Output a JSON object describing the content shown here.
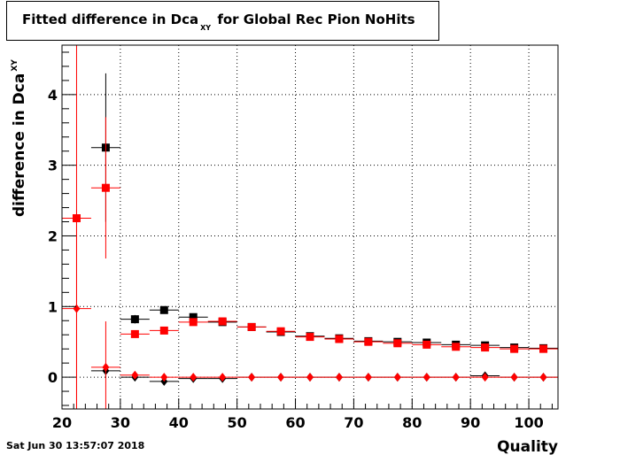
{
  "title": {
    "main": "Fitted difference in Dca",
    "sub": "XY",
    "rest": "for Global Rec Pion NoHits"
  },
  "footer": {
    "date": "Sat Jun 30 13:57:07 2018"
  },
  "chart_data": {
    "type": "scatter",
    "xlabel": "Quality",
    "ylabel": {
      "main": "difference in Dca",
      "sub": "XY"
    },
    "xlim": [
      20,
      105
    ],
    "ylim": [
      -0.45,
      4.7
    ],
    "x_ticks": [
      20,
      30,
      40,
      50,
      60,
      70,
      80,
      90,
      100
    ],
    "y_ticks": [
      0,
      1,
      2,
      3,
      4
    ],
    "grid": true,
    "colors": {
      "black_series": "#000000",
      "red_series": "#ff0000"
    },
    "series": [
      {
        "marker": "square",
        "color": "#000000",
        "points": [
          {
            "x": 27.5,
            "y": 3.25,
            "yerr": 1.05,
            "xerr": 2.5
          },
          {
            "x": 32.5,
            "y": 0.82,
            "yerr": 0.06,
            "xerr": 2.5
          },
          {
            "x": 37.5,
            "y": 0.95,
            "yerr": 0.05,
            "xerr": 2.5
          },
          {
            "x": 42.5,
            "y": 0.85,
            "yerr": 0.03,
            "xerr": 2.5
          },
          {
            "x": 47.5,
            "y": 0.78,
            "yerr": 0.03,
            "xerr": 2.5
          },
          {
            "x": 52.5,
            "y": 0.71,
            "yerr": 0.02,
            "xerr": 2.5
          },
          {
            "x": 57.5,
            "y": 0.64,
            "yerr": 0.02,
            "xerr": 2.5
          },
          {
            "x": 62.5,
            "y": 0.58,
            "yerr": 0.02,
            "xerr": 2.5
          },
          {
            "x": 67.5,
            "y": 0.55,
            "yerr": 0.02,
            "xerr": 2.5
          },
          {
            "x": 72.5,
            "y": 0.51,
            "yerr": 0.02,
            "xerr": 2.5
          },
          {
            "x": 77.5,
            "y": 0.5,
            "yerr": 0.02,
            "xerr": 2.5
          },
          {
            "x": 82.5,
            "y": 0.49,
            "yerr": 0.02,
            "xerr": 2.5
          },
          {
            "x": 87.5,
            "y": 0.46,
            "yerr": 0.02,
            "xerr": 2.5
          },
          {
            "x": 92.5,
            "y": 0.45,
            "yerr": 0.02,
            "xerr": 2.5
          },
          {
            "x": 97.5,
            "y": 0.42,
            "yerr": 0.02,
            "xerr": 2.5
          },
          {
            "x": 102.5,
            "y": 0.41,
            "yerr": 0.02,
            "xerr": 2.5
          }
        ]
      },
      {
        "marker": "square",
        "color": "#ff0000",
        "points": [
          {
            "x": 22.5,
            "y": 2.25,
            "yerr": 2.9,
            "xerr": 2.5
          },
          {
            "x": 27.5,
            "y": 2.68,
            "yerr": 1.0,
            "xerr": 2.5
          },
          {
            "x": 32.5,
            "y": 0.61,
            "yerr": 0.04,
            "xerr": 2.5
          },
          {
            "x": 37.5,
            "y": 0.66,
            "yerr": 0.03,
            "xerr": 2.5
          },
          {
            "x": 42.5,
            "y": 0.78,
            "yerr": 0.03,
            "xerr": 2.5
          },
          {
            "x": 47.5,
            "y": 0.79,
            "yerr": 0.03,
            "xerr": 2.5
          },
          {
            "x": 52.5,
            "y": 0.71,
            "yerr": 0.02,
            "xerr": 2.5
          },
          {
            "x": 57.5,
            "y": 0.65,
            "yerr": 0.02,
            "xerr": 2.5
          },
          {
            "x": 62.5,
            "y": 0.57,
            "yerr": 0.02,
            "xerr": 2.5
          },
          {
            "x": 67.5,
            "y": 0.54,
            "yerr": 0.02,
            "xerr": 2.5
          },
          {
            "x": 72.5,
            "y": 0.5,
            "yerr": 0.02,
            "xerr": 2.5
          },
          {
            "x": 77.5,
            "y": 0.48,
            "yerr": 0.02,
            "xerr": 2.5
          },
          {
            "x": 82.5,
            "y": 0.46,
            "yerr": 0.02,
            "xerr": 2.5
          },
          {
            "x": 87.5,
            "y": 0.43,
            "yerr": 0.02,
            "xerr": 2.5
          },
          {
            "x": 92.5,
            "y": 0.42,
            "yerr": 0.02,
            "xerr": 2.5
          },
          {
            "x": 97.5,
            "y": 0.4,
            "yerr": 0.02,
            "xerr": 2.5
          },
          {
            "x": 102.5,
            "y": 0.4,
            "yerr": 0.02,
            "xerr": 2.5
          }
        ]
      },
      {
        "marker": "diamond",
        "color": "#000000",
        "points": [
          {
            "x": 27.5,
            "y": 0.09,
            "yerr": 0.1,
            "xerr": 2.5
          },
          {
            "x": 32.5,
            "y": 0.0,
            "yerr": 0.02,
            "xerr": 2.5
          },
          {
            "x": 37.5,
            "y": -0.06,
            "yerr": 0.02,
            "xerr": 2.5
          },
          {
            "x": 42.5,
            "y": -0.02,
            "yerr": 0.02,
            "xerr": 2.5
          },
          {
            "x": 47.5,
            "y": -0.02,
            "yerr": 0.01,
            "xerr": 2.5
          },
          {
            "x": 52.5,
            "y": 0.0,
            "yerr": 0.01,
            "xerr": 2.5
          },
          {
            "x": 57.5,
            "y": 0.0,
            "yerr": 0.01,
            "xerr": 2.5
          },
          {
            "x": 62.5,
            "y": 0.0,
            "yerr": 0.01,
            "xerr": 2.5
          },
          {
            "x": 67.5,
            "y": 0.0,
            "yerr": 0.01,
            "xerr": 2.5
          },
          {
            "x": 72.5,
            "y": 0.0,
            "yerr": 0.01,
            "xerr": 2.5
          },
          {
            "x": 77.5,
            "y": 0.0,
            "yerr": 0.01,
            "xerr": 2.5
          },
          {
            "x": 82.5,
            "y": 0.0,
            "yerr": 0.01,
            "xerr": 2.5
          },
          {
            "x": 87.5,
            "y": 0.0,
            "yerr": 0.01,
            "xerr": 2.5
          },
          {
            "x": 92.5,
            "y": 0.02,
            "yerr": 0.01,
            "xerr": 2.5
          },
          {
            "x": 97.5,
            "y": 0.0,
            "yerr": 0.01,
            "xerr": 2.5
          },
          {
            "x": 102.5,
            "y": 0.0,
            "yerr": 0.01,
            "xerr": 2.5
          }
        ]
      },
      {
        "marker": "diamond",
        "color": "#ff0000",
        "points": [
          {
            "x": 22.5,
            "y": 0.97,
            "yerr": 1.4,
            "xerr": 2.5
          },
          {
            "x": 27.5,
            "y": 0.14,
            "yerr": 0.65,
            "xerr": 2.5
          },
          {
            "x": 32.5,
            "y": 0.03,
            "yerr": 0.02,
            "xerr": 2.5
          },
          {
            "x": 37.5,
            "y": 0.0,
            "yerr": 0.02,
            "xerr": 2.5
          },
          {
            "x": 42.5,
            "y": 0.0,
            "yerr": 0.02,
            "xerr": 2.5
          },
          {
            "x": 47.5,
            "y": 0.0,
            "yerr": 0.01,
            "xerr": 2.5
          },
          {
            "x": 52.5,
            "y": 0.0,
            "yerr": 0.01,
            "xerr": 2.5
          },
          {
            "x": 57.5,
            "y": 0.0,
            "yerr": 0.01,
            "xerr": 2.5
          },
          {
            "x": 62.5,
            "y": 0.0,
            "yerr": 0.01,
            "xerr": 2.5
          },
          {
            "x": 67.5,
            "y": 0.0,
            "yerr": 0.01,
            "xerr": 2.5
          },
          {
            "x": 72.5,
            "y": 0.0,
            "yerr": 0.01,
            "xerr": 2.5
          },
          {
            "x": 77.5,
            "y": 0.0,
            "yerr": 0.01,
            "xerr": 2.5
          },
          {
            "x": 82.5,
            "y": 0.0,
            "yerr": 0.01,
            "xerr": 2.5
          },
          {
            "x": 87.5,
            "y": 0.0,
            "yerr": 0.01,
            "xerr": 2.5
          },
          {
            "x": 92.5,
            "y": 0.0,
            "yerr": 0.01,
            "xerr": 2.5
          },
          {
            "x": 97.5,
            "y": 0.0,
            "yerr": 0.01,
            "xerr": 2.5
          },
          {
            "x": 102.5,
            "y": 0.0,
            "yerr": 0.01,
            "xerr": 2.5
          }
        ]
      }
    ]
  }
}
